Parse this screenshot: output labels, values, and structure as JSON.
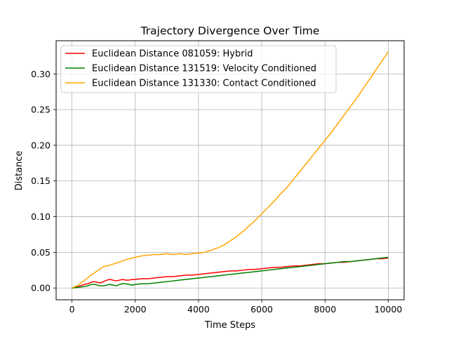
{
  "chart_data": {
    "type": "line",
    "title": "Trajectory Divergence Over Time",
    "xlabel": "Time Steps",
    "ylabel": "Distance",
    "xlim": [
      -500,
      10500
    ],
    "ylim": [
      -0.0165,
      0.3465
    ],
    "xticks": [
      0,
      2000,
      4000,
      6000,
      8000,
      10000
    ],
    "xtick_labels": [
      "0",
      "2000",
      "4000",
      "6000",
      "8000",
      "10000"
    ],
    "yticks": [
      0.0,
      0.05,
      0.1,
      0.15,
      0.2,
      0.25,
      0.3
    ],
    "ytick_labels": [
      "0.00",
      "0.05",
      "0.10",
      "0.15",
      "0.20",
      "0.25",
      "0.30"
    ],
    "grid": true,
    "legend_position": "upper-left",
    "series": [
      {
        "name": "Euclidean Distance 081059: Hybrid",
        "color": "#ff0000",
        "x": [
          0,
          200,
          400,
          500,
          600,
          700,
          800,
          900,
          1000,
          1100,
          1200,
          1300,
          1400,
          1500,
          1600,
          1700,
          1800,
          1900,
          2000,
          2200,
          2400,
          2600,
          2800,
          3000,
          3200,
          3400,
          3600,
          3800,
          4000,
          4200,
          4400,
          4600,
          4800,
          5000,
          5200,
          5400,
          5600,
          5800,
          6000,
          6200,
          6400,
          6600,
          6800,
          7000,
          7200,
          7400,
          7600,
          7800,
          8000,
          8200,
          8400,
          8600,
          8800,
          9000,
          9200,
          9400,
          9600,
          9800,
          10000
        ],
        "y": [
          0.0,
          0.002,
          0.005,
          0.006,
          0.008,
          0.009,
          0.008,
          0.007,
          0.009,
          0.011,
          0.012,
          0.011,
          0.01,
          0.011,
          0.012,
          0.011,
          0.011,
          0.012,
          0.012,
          0.013,
          0.013,
          0.014,
          0.015,
          0.016,
          0.016,
          0.017,
          0.018,
          0.018,
          0.019,
          0.02,
          0.021,
          0.022,
          0.023,
          0.024,
          0.024,
          0.025,
          0.026,
          0.026,
          0.027,
          0.028,
          0.029,
          0.029,
          0.03,
          0.031,
          0.031,
          0.032,
          0.033,
          0.034,
          0.034,
          0.035,
          0.036,
          0.036,
          0.037,
          0.038,
          0.039,
          0.04,
          0.041,
          0.041,
          0.042
        ]
      },
      {
        "name": "Euclidean Distance 131519: Velocity Conditioned",
        "color": "#008000",
        "x": [
          0,
          200,
          400,
          500,
          600,
          700,
          800,
          900,
          1000,
          1100,
          1200,
          1300,
          1400,
          1500,
          1600,
          1700,
          1800,
          1900,
          2000,
          2200,
          2400,
          2600,
          2800,
          3000,
          3200,
          3400,
          3600,
          3800,
          4000,
          4200,
          4400,
          4600,
          4800,
          5000,
          5200,
          5400,
          5600,
          5800,
          6000,
          6200,
          6400,
          6600,
          6800,
          7000,
          7200,
          7400,
          7600,
          7800,
          8000,
          8200,
          8400,
          8600,
          8800,
          9000,
          9200,
          9400,
          9600,
          9800,
          10000
        ],
        "y": [
          0.0,
          0.001,
          0.002,
          0.003,
          0.005,
          0.005,
          0.004,
          0.003,
          0.003,
          0.004,
          0.005,
          0.004,
          0.003,
          0.005,
          0.006,
          0.006,
          0.005,
          0.004,
          0.005,
          0.006,
          0.006,
          0.007,
          0.008,
          0.009,
          0.01,
          0.011,
          0.012,
          0.013,
          0.014,
          0.015,
          0.016,
          0.017,
          0.018,
          0.019,
          0.02,
          0.021,
          0.022,
          0.023,
          0.024,
          0.025,
          0.026,
          0.027,
          0.028,
          0.029,
          0.03,
          0.031,
          0.032,
          0.033,
          0.034,
          0.035,
          0.036,
          0.037,
          0.037,
          0.038,
          0.039,
          0.04,
          0.041,
          0.042,
          0.043
        ]
      },
      {
        "name": "Euclidean Distance 131330: Contact Conditioned",
        "color": "#ffa500",
        "x": [
          0,
          200,
          400,
          600,
          800,
          1000,
          1200,
          1400,
          1600,
          1800,
          2000,
          2200,
          2400,
          2600,
          2800,
          3000,
          3200,
          3400,
          3600,
          3800,
          4000,
          4200,
          4400,
          4600,
          4800,
          5000,
          5200,
          5400,
          5600,
          5800,
          6000,
          6200,
          6400,
          6600,
          6800,
          7000,
          7200,
          7400,
          7600,
          7800,
          8000,
          8200,
          8400,
          8600,
          8800,
          9000,
          9200,
          9400,
          9600,
          9800,
          10000
        ],
        "y": [
          0.0,
          0.004,
          0.011,
          0.018,
          0.024,
          0.03,
          0.032,
          0.035,
          0.038,
          0.041,
          0.043,
          0.045,
          0.046,
          0.047,
          0.047,
          0.048,
          0.047,
          0.048,
          0.047,
          0.048,
          0.049,
          0.05,
          0.053,
          0.056,
          0.06,
          0.066,
          0.072,
          0.079,
          0.087,
          0.095,
          0.104,
          0.113,
          0.122,
          0.132,
          0.141,
          0.152,
          0.163,
          0.174,
          0.185,
          0.196,
          0.207,
          0.218,
          0.23,
          0.242,
          0.254,
          0.266,
          0.279,
          0.292,
          0.305,
          0.318,
          0.331
        ]
      }
    ]
  }
}
